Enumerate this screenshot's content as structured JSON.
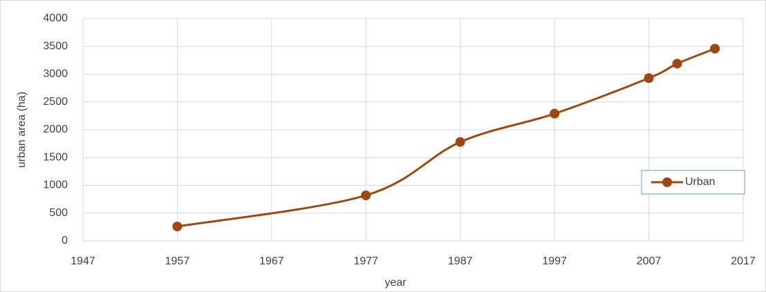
{
  "chart_data": {
    "type": "line",
    "x_label": "year",
    "y_label": "urban area (ha)",
    "x": [
      1957,
      1977,
      1987,
      1997,
      2007,
      2010,
      2014
    ],
    "series": [
      {
        "name": "Urban",
        "color": "#9e480e",
        "values": [
          260,
          820,
          1780,
          2290,
          2930,
          3190,
          3460
        ]
      }
    ],
    "xlim": [
      1947,
      2017
    ],
    "xticks": [
      1947,
      1957,
      1967,
      1977,
      1987,
      1997,
      2007,
      2017
    ],
    "ylim": [
      0,
      4000
    ],
    "yticks": [
      0,
      500,
      1000,
      1500,
      2000,
      2500,
      3000,
      3500,
      4000
    ],
    "grid": true,
    "smooth": true,
    "legend": "right"
  }
}
